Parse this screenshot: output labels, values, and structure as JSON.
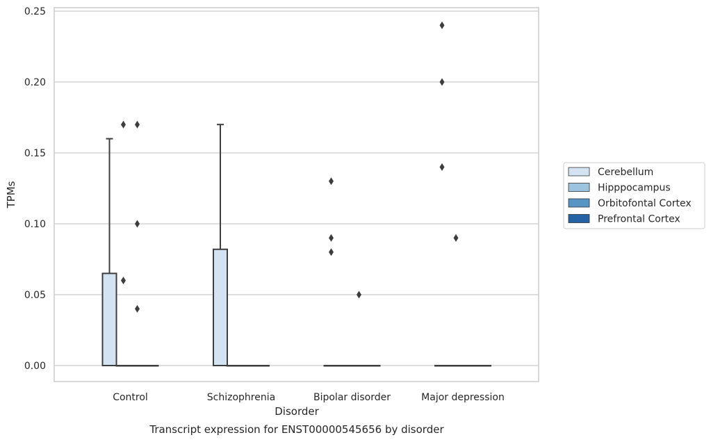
{
  "chart_data": {
    "type": "box",
    "title": "Transcript expression for ENST00000545656 by disorder",
    "xlabel": "Disorder",
    "ylabel": "TPMs",
    "ylim": [
      -0.012,
      0.252
    ],
    "yticks": [
      "0.00",
      "0.05",
      "0.10",
      "0.15",
      "0.20",
      "0.25"
    ],
    "ytick_values": [
      0,
      0.05,
      0.1,
      0.15,
      0.2,
      0.25
    ],
    "grid": true,
    "legend_position": "right",
    "categories": [
      "Control",
      "Schizophrenia",
      "Bipolar disorder",
      "Major depression"
    ],
    "series": [
      {
        "name": "Cerebellum",
        "color": "#d4e3f2",
        "boxes": [
          {
            "q1": 0,
            "median": 0,
            "q3": 0.065,
            "whisker_low": 0,
            "whisker_high": 0.16,
            "outliers": []
          },
          {
            "q1": 0,
            "median": 0,
            "q3": 0.082,
            "whisker_low": 0,
            "whisker_high": 0.17,
            "outliers": []
          },
          {
            "q1": 0,
            "median": 0,
            "q3": 0,
            "whisker_low": 0,
            "whisker_high": 0,
            "outliers": [
              0.13,
              0.09,
              0.08
            ]
          },
          {
            "q1": 0,
            "median": 0,
            "q3": 0,
            "whisker_low": 0,
            "whisker_high": 0,
            "outliers": [
              0.24,
              0.2,
              0.14
            ]
          }
        ]
      },
      {
        "name": "Hipppocampus",
        "color": "#9dc4de",
        "boxes": [
          {
            "q1": 0,
            "median": 0,
            "q3": 0,
            "whisker_low": 0,
            "whisker_high": 0,
            "outliers": [
              0.17,
              0.06
            ]
          },
          {
            "q1": 0,
            "median": 0,
            "q3": 0,
            "whisker_low": 0,
            "whisker_high": 0,
            "outliers": []
          },
          {
            "q1": 0,
            "median": 0,
            "q3": 0,
            "whisker_low": 0,
            "whisker_high": 0,
            "outliers": []
          },
          {
            "q1": 0,
            "median": 0,
            "q3": 0,
            "whisker_low": 0,
            "whisker_high": 0,
            "outliers": [
              0.09
            ]
          }
        ]
      },
      {
        "name": "Orbitofontal Cortex",
        "color": "#5596c4",
        "boxes": [
          {
            "q1": 0,
            "median": 0,
            "q3": 0,
            "whisker_low": 0,
            "whisker_high": 0,
            "outliers": [
              0.17,
              0.1,
              0.04
            ]
          },
          {
            "q1": 0,
            "median": 0,
            "q3": 0,
            "whisker_low": 0,
            "whisker_high": 0,
            "outliers": []
          },
          {
            "q1": 0,
            "median": 0,
            "q3": 0,
            "whisker_low": 0,
            "whisker_high": 0,
            "outliers": [
              0.05
            ]
          },
          {
            "q1": 0,
            "median": 0,
            "q3": 0,
            "whisker_low": 0,
            "whisker_high": 0,
            "outliers": []
          }
        ]
      },
      {
        "name": "Prefrontal Cortex",
        "color": "#2464a4",
        "boxes": [
          {
            "q1": 0,
            "median": 0,
            "q3": 0,
            "whisker_low": 0,
            "whisker_high": 0,
            "outliers": []
          },
          {
            "q1": 0,
            "median": 0,
            "q3": 0,
            "whisker_low": 0,
            "whisker_high": 0,
            "outliers": []
          },
          {
            "q1": 0,
            "median": 0,
            "q3": 0,
            "whisker_low": 0,
            "whisker_high": 0,
            "outliers": []
          },
          {
            "q1": 0,
            "median": 0,
            "q3": 0,
            "whisker_low": 0,
            "whisker_high": 0,
            "outliers": []
          }
        ]
      }
    ]
  }
}
